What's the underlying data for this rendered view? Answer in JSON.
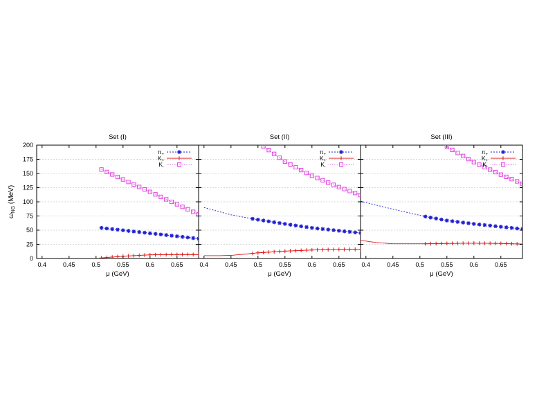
{
  "figure": {
    "ylabel_main": "ω",
    "ylabel_sub": "NG",
    "ylabel_unit": " (MeV)"
  },
  "colors": {
    "pi_plus": "#1f1fd0",
    "k_plus": "#e01818",
    "k_minus": "#e040e0",
    "grid": "#b0b0b0"
  },
  "chart_data": [
    {
      "type": "line",
      "title": "Set (I)",
      "xlabel": "μ (GeV)",
      "ylabel": "ωNG (MeV)",
      "xlim": [
        0.39,
        0.69
      ],
      "ylim": [
        0,
        200
      ],
      "xticks": [
        "0.4",
        "0.45",
        "0.5",
        "0.55",
        "0.6",
        "0.65"
      ],
      "xtick_values": [
        0.4,
        0.45,
        0.5,
        0.55,
        0.6,
        0.65
      ],
      "yticks": [
        "0",
        "25",
        "50",
        "75",
        "100",
        "125",
        "150",
        "175",
        "200"
      ],
      "ytick_values": [
        0,
        25,
        50,
        75,
        100,
        125,
        150,
        175,
        200
      ],
      "grid": "horizontal dashed",
      "legend": "top-right",
      "series": [
        {
          "name": "π+",
          "label_main": "π",
          "label_sub": "+",
          "marker": "star",
          "line": "dashed",
          "x": [
            0.51,
            0.69
          ],
          "y": [
            54,
            35
          ],
          "x_dense": [
            0.51,
            0.69
          ]
        },
        {
          "name": "K+",
          "label_main": "K",
          "label_sub": "+",
          "marker": "plus",
          "line": "solid",
          "x": [
            0.51,
            0.55,
            0.6,
            0.65,
            0.69
          ],
          "y": [
            1,
            4,
            6.5,
            7,
            7
          ]
        },
        {
          "name": "K-",
          "label_main": "K",
          "label_sub": "-",
          "marker": "square",
          "line": "dotted",
          "x": [
            0.51,
            0.69
          ],
          "y": [
            157,
            78
          ]
        }
      ]
    },
    {
      "type": "line",
      "title": "Set (II)",
      "xlabel": "μ (GeV)",
      "ylabel": "",
      "xlim": [
        0.39,
        0.69
      ],
      "ylim": [
        0,
        200
      ],
      "xticks": [
        "0.4",
        "0.45",
        "0.5",
        "0.55",
        "0.6",
        "0.65"
      ],
      "xtick_values": [
        0.4,
        0.45,
        0.5,
        0.55,
        0.6,
        0.65
      ],
      "yticks": [],
      "grid": "horizontal dashed",
      "legend": "top-right",
      "series": [
        {
          "name": "π+",
          "label_main": "π",
          "label_sub": "+",
          "marker": "star",
          "line": "dashed",
          "x": [
            0.4,
            0.45,
            0.49,
            0.55,
            0.6,
            0.65,
            0.69
          ],
          "y": [
            90,
            77,
            70,
            61,
            54,
            49,
            45
          ],
          "x_marker_start": 0.49
        },
        {
          "name": "K+",
          "label_main": "K",
          "label_sub": "+",
          "marker": "plus",
          "line": "solid",
          "x": [
            0.4,
            0.43,
            0.45,
            0.48,
            0.5,
            0.55,
            0.6,
            0.65,
            0.69
          ],
          "y": [
            5,
            5,
            5.5,
            8,
            10,
            13,
            15,
            16,
            16
          ],
          "x_marker_start": 0.49
        },
        {
          "name": "K-",
          "label_main": "K",
          "label_sub": "-",
          "marker": "square",
          "line": "dotted",
          "x": [
            0.51,
            0.55,
            0.6,
            0.65,
            0.69
          ],
          "y": [
            198,
            171,
            146,
            126,
            112
          ],
          "x_marker_start": 0.51
        }
      ]
    },
    {
      "type": "line",
      "title": "Set (III)",
      "xlabel": "μ (GeV)",
      "ylabel": "",
      "xlim": [
        0.39,
        0.69
      ],
      "ylim": [
        0,
        200
      ],
      "xticks": [
        "0.4",
        "0.45",
        "0.5",
        "0.55",
        "0.6",
        "0.65"
      ],
      "xtick_values": [
        0.4,
        0.45,
        0.5,
        0.55,
        0.6,
        0.65
      ],
      "yticks": [],
      "grid": "horizontal dashed",
      "legend": "top-right",
      "series": [
        {
          "name": "π+",
          "label_main": "π",
          "label_sub": "+",
          "marker": "star",
          "line": "dashed",
          "x": [
            0.39,
            0.45,
            0.51,
            0.55,
            0.6,
            0.65,
            0.69
          ],
          "y": [
            101,
            87,
            74,
            67,
            61,
            56,
            52
          ],
          "x_marker_start": 0.51
        },
        {
          "name": "K+",
          "label_main": "K",
          "label_sub": "+",
          "marker": "plus",
          "line": "solid",
          "x": [
            0.39,
            0.42,
            0.45,
            0.48,
            0.51,
            0.55,
            0.6,
            0.65,
            0.69
          ],
          "y": [
            32,
            28,
            26,
            26,
            26,
            26.5,
            27,
            26.5,
            25.5
          ],
          "x_marker_start": 0.51
        },
        {
          "name": "K-",
          "label_main": "K",
          "label_sub": "-",
          "marker": "square",
          "line": "dotted",
          "x": [
            0.55,
            0.6,
            0.65,
            0.69
          ],
          "y": [
            197,
            170,
            148,
            132
          ],
          "x_marker_start": 0.55
        }
      ]
    }
  ]
}
